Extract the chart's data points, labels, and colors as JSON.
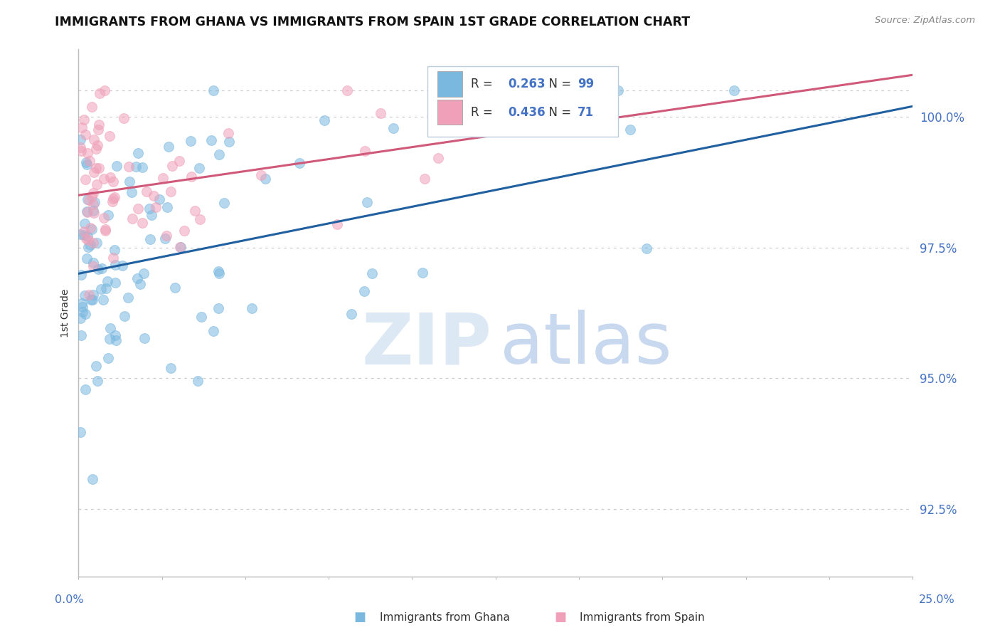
{
  "title": "IMMIGRANTS FROM GHANA VS IMMIGRANTS FROM SPAIN 1ST GRADE CORRELATION CHART",
  "source": "Source: ZipAtlas.com",
  "ylabel": "1st Grade",
  "xlim": [
    0.0,
    25.0
  ],
  "ylim": [
    91.2,
    101.3
  ],
  "yticks": [
    92.5,
    95.0,
    97.5,
    100.0
  ],
  "ytick_labels": [
    "92.5%",
    "95.0%",
    "97.5%",
    "100.0%"
  ],
  "ghana_color": "#7ab8e0",
  "spain_color": "#f0a0b8",
  "ghana_line_color": "#2060a0",
  "spain_line_color": "#d05878",
  "ghana_R": 0.263,
  "ghana_N": 99,
  "spain_R": 0.436,
  "spain_N": 71,
  "ghana_line_x0": 0.0,
  "ghana_line_y0": 97.0,
  "ghana_line_x1": 25.0,
  "ghana_line_y1": 100.2,
  "spain_line_x0": 0.0,
  "spain_line_y0": 98.5,
  "spain_line_x1": 25.0,
  "spain_line_y1": 100.8,
  "watermark_zip_color": "#dde8f5",
  "watermark_atlas_color": "#c8d8ee",
  "background_color": "#ffffff",
  "tick_label_color": "#4472c4",
  "ylabel_color": "#333333",
  "title_color": "#111111",
  "source_color": "#888888",
  "grid_color": "#cccccc",
  "spine_color": "#bbbbbb",
  "legend_border_color": "#bbccdd"
}
